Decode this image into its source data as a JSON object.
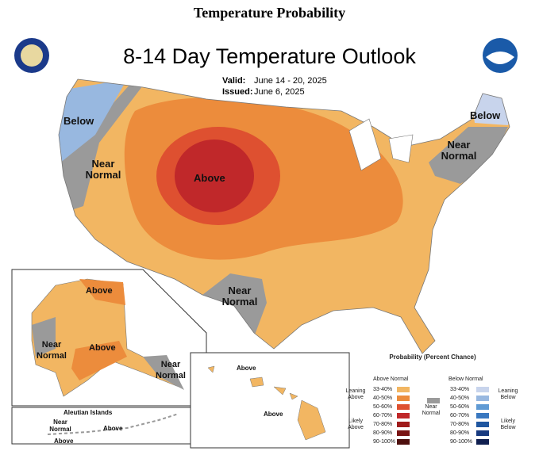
{
  "header": {
    "title": "Temperature Probability"
  },
  "map": {
    "title": "8-14 Day Temperature Outlook",
    "valid_label": "Valid:",
    "valid": "June 14 - 20, 2025",
    "issued_label": "Issued:",
    "issued": "June 6, 2025",
    "conus_labels": [
      "Below",
      "Near Normal",
      "Above",
      "Near Normal",
      "Below",
      "Near Normal"
    ],
    "alaska_labels": [
      "Above",
      "Near Normal",
      "Above",
      "Near Normal"
    ],
    "hawaii_labels": [
      "Above",
      "Above"
    ],
    "aleutian": {
      "title": "Aleutian Islands",
      "labels": [
        "Near Normal",
        "Above",
        "Above"
      ]
    }
  },
  "legend": {
    "title": "Probability (Percent Chance)",
    "above_title": "Above Normal",
    "below_title": "Below Normal",
    "near": "Near Normal",
    "near_color": "#9a9a9a",
    "leaning_above": "Leaning Above",
    "likely_above": "Likely Above",
    "leaning_below": "Leaning Below",
    "likely_below": "Likely Below",
    "above": [
      {
        "range": "33-40%",
        "color": "#f2b662"
      },
      {
        "range": "40-50%",
        "color": "#ec8c3c"
      },
      {
        "range": "50-60%",
        "color": "#de5030"
      },
      {
        "range": "60-70%",
        "color": "#c0282a"
      },
      {
        "range": "70-80%",
        "color": "#a01c1c"
      },
      {
        "range": "80-90%",
        "color": "#7a1414"
      },
      {
        "range": "90-100%",
        "color": "#4e100e"
      }
    ],
    "below": [
      {
        "range": "33-40%",
        "color": "#c8d4ec"
      },
      {
        "range": "40-50%",
        "color": "#98b8e0"
      },
      {
        "range": "50-60%",
        "color": "#5f9ad4"
      },
      {
        "range": "60-70%",
        "color": "#3a78c0"
      },
      {
        "range": "70-80%",
        "color": "#1f56a0"
      },
      {
        "range": "80-90%",
        "color": "#183a80"
      },
      {
        "range": "90-100%",
        "color": "#101f50"
      }
    ]
  }
}
